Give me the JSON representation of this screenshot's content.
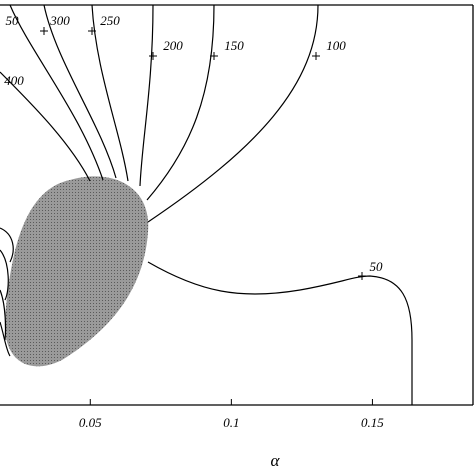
{
  "chart_data": {
    "type": "contour",
    "xlabel": "α",
    "xlim": [
      0.018,
      0.186
    ],
    "xticks": [
      0.05,
      0.1,
      0.15
    ],
    "contour_labels": [
      50,
      300,
      250,
      200,
      150,
      100,
      400,
      50
    ]
  }
}
